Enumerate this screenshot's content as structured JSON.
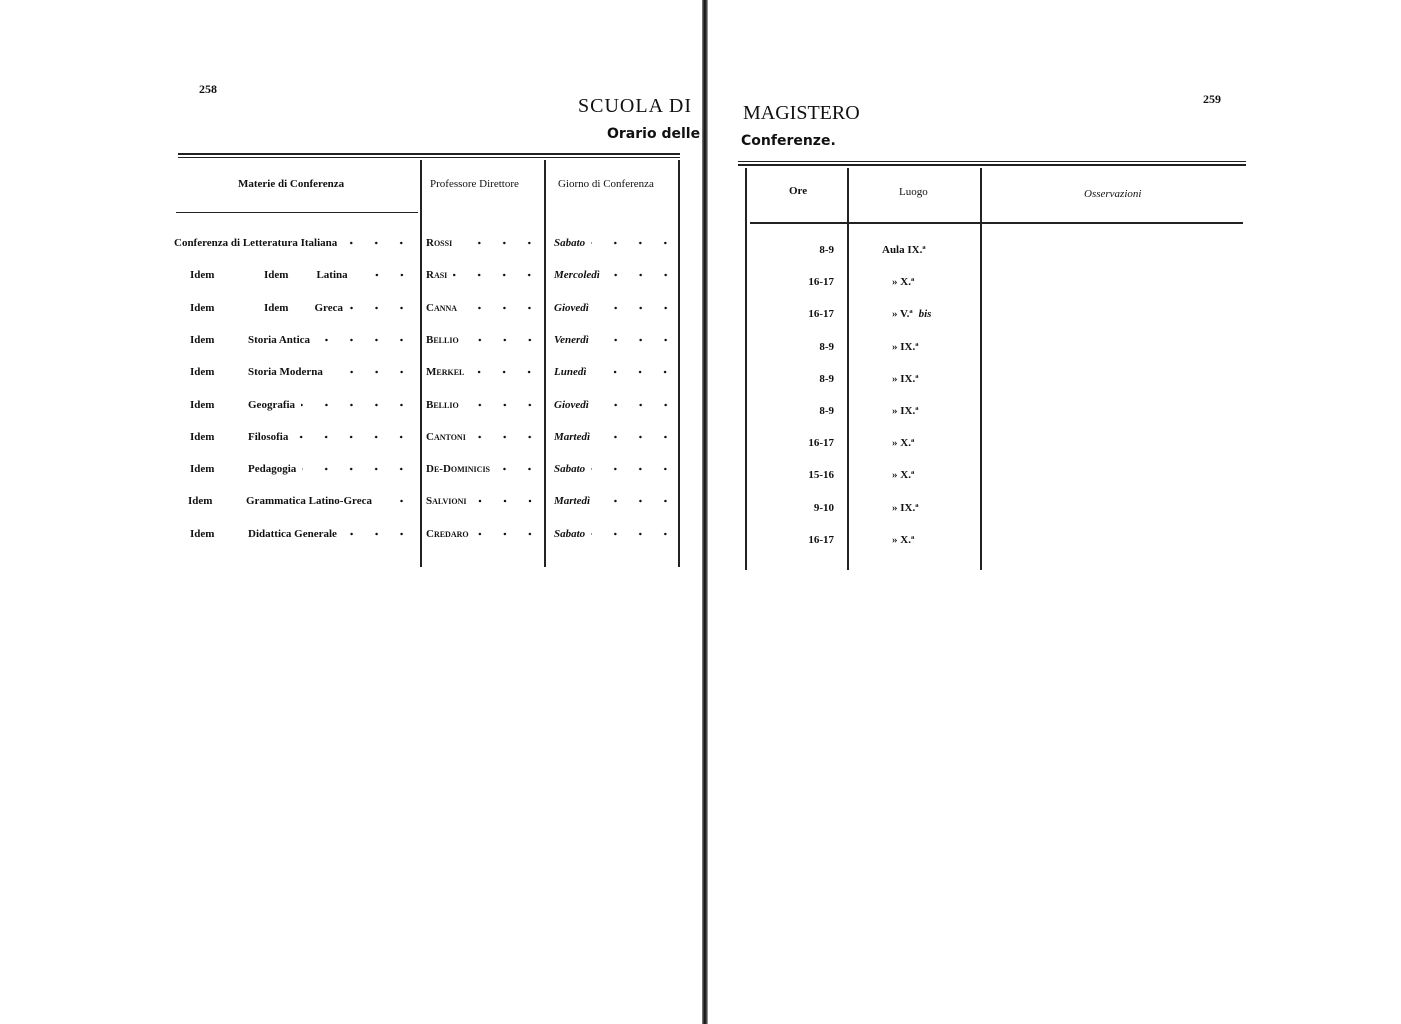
{
  "left_page": {
    "page_number": "258",
    "title_part": "SCUOLA DI",
    "subtitle_part": "Orario delle",
    "columns": [
      "Materie di Conferenza",
      "Professore Direttore",
      "Giorno di Conferenza"
    ],
    "rows": [
      {
        "c1": "Conferenza di Letteratura Italiana",
        "c1b": "",
        "c1c": "",
        "prof": "Rossi",
        "day": "Sabato"
      },
      {
        "c1": "Idem",
        "c1b": "Idem",
        "c1c": "Latina",
        "prof": "Rasi",
        "day": "Mercoledì"
      },
      {
        "c1": "Idem",
        "c1b": "Idem",
        "c1c": "Greca",
        "prof": "Canna",
        "day": "Giovedì"
      },
      {
        "c1": "Idem",
        "c1b": "Storia Antica",
        "c1c": "",
        "prof": "Bellio",
        "day": "Venerdì"
      },
      {
        "c1": "Idem",
        "c1b": "Storia Moderna",
        "c1c": "",
        "prof": "Merkel",
        "day": "Lunedì"
      },
      {
        "c1": "Idem",
        "c1b": "Geografia",
        "c1c": "",
        "prof": "Bellio",
        "day": "Giovedì"
      },
      {
        "c1": "Idem",
        "c1b": "Filosofia",
        "c1c": "",
        "prof": "Cantoni",
        "day": "Martedì"
      },
      {
        "c1": "Idem",
        "c1b": "Pedagogia",
        "c1c": "",
        "prof": "De-Dominicis",
        "day": "Sabato"
      },
      {
        "c1": "Idem",
        "c1b": "Grammatica Latino-Greca",
        "c1c": "",
        "prof": "Salvioni",
        "day": "Martedì"
      },
      {
        "c1": "Idem",
        "c1b": "Didattica Generale",
        "c1c": "",
        "prof": "Credaro",
        "day": "Sabato"
      }
    ]
  },
  "right_page": {
    "page_number": "259",
    "title_part": "MAGISTERO",
    "subtitle_part": "Conferenze.",
    "columns": [
      "Ore",
      "Luogo",
      "Osservazioni"
    ],
    "rows": [
      {
        "ore": "8-9",
        "luogo": "Aula IX.ª",
        "bis": ""
      },
      {
        "ore": "16-17",
        "luogo": "» X.ª",
        "bis": ""
      },
      {
        "ore": "16-17",
        "luogo": "» V.ª",
        "bis": "bis"
      },
      {
        "ore": "8-9",
        "luogo": "» IX.ª",
        "bis": ""
      },
      {
        "ore": "8-9",
        "luogo": "» IX.ª",
        "bis": ""
      },
      {
        "ore": "8-9",
        "luogo": "» IX.ª",
        "bis": ""
      },
      {
        "ore": "16-17",
        "luogo": "» X.ª",
        "bis": ""
      },
      {
        "ore": "15-16",
        "luogo": "» X.ª",
        "bis": ""
      },
      {
        "ore": "9-10",
        "luogo": "» IX.ª",
        "bis": ""
      },
      {
        "ore": "16-17",
        "luogo": "» X.ª",
        "bis": ""
      }
    ]
  }
}
